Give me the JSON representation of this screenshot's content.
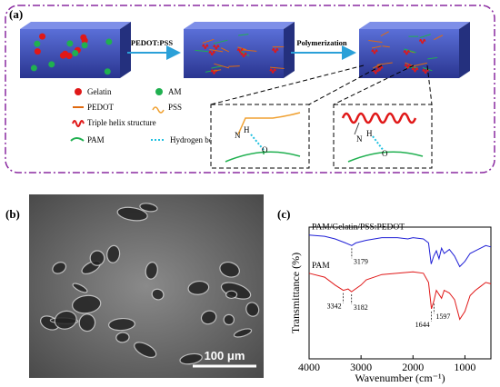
{
  "panel_a": {
    "label": "(a)",
    "steps": [
      "PEDOT:PSS",
      "Polymerization"
    ],
    "legend": [
      "Gelatin",
      "AM",
      "PEDOT",
      "PSS",
      "Triple helix structure",
      "PAM",
      "Hydrogen bond"
    ],
    "insets": [
      {
        "atoms": [
          "N",
          "H",
          "O"
        ]
      },
      {
        "atoms": [
          "N",
          "H",
          "O"
        ]
      }
    ]
  },
  "panel_b": {
    "label": "(b)",
    "scale_bar": "100 μm"
  },
  "chart_data": {
    "type": "line",
    "label": "(c)",
    "xlabel": "Wavenumber (cm⁻¹)",
    "ylabel": "Transmittance (%)",
    "xlim": [
      4000,
      500
    ],
    "xticks": [
      4000,
      3000,
      2000,
      1000
    ],
    "ylim": [
      0,
      100
    ],
    "series": [
      {
        "name": "PAM/Gelatin/PSS:PEDOT",
        "color": "#1f1fd6",
        "x": [
          4000,
          3700,
          3500,
          3300,
          3179,
          3100,
          2900,
          2600,
          2300,
          2100,
          2000,
          1800,
          1700,
          1650,
          1600,
          1550,
          1500,
          1450,
          1400,
          1300,
          1200,
          1100,
          1000,
          900,
          800,
          700,
          600,
          500
        ],
        "values": [
          94,
          93,
          91,
          88,
          86,
          88,
          90,
          92,
          92,
          91,
          92,
          91,
          88,
          72,
          78,
          82,
          76,
          84,
          80,
          83,
          78,
          70,
          74,
          80,
          82,
          84,
          86,
          85
        ],
        "annotations": [
          3179
        ]
      },
      {
        "name": "PAM",
        "color": "#e01818",
        "x": [
          4000,
          3700,
          3500,
          3342,
          3250,
          3182,
          3000,
          2900,
          2600,
          2300,
          2000,
          1800,
          1700,
          1644,
          1597,
          1550,
          1450,
          1400,
          1300,
          1200,
          1100,
          1000,
          900,
          800,
          700,
          600,
          500
        ],
        "values": [
          65,
          62,
          56,
          52,
          53,
          51,
          56,
          60,
          64,
          65,
          66,
          65,
          58,
          38,
          44,
          52,
          46,
          52,
          50,
          45,
          30,
          36,
          48,
          52,
          55,
          58,
          57
        ],
        "annotations": [
          3342,
          3182,
          1644,
          1597
        ]
      }
    ]
  }
}
